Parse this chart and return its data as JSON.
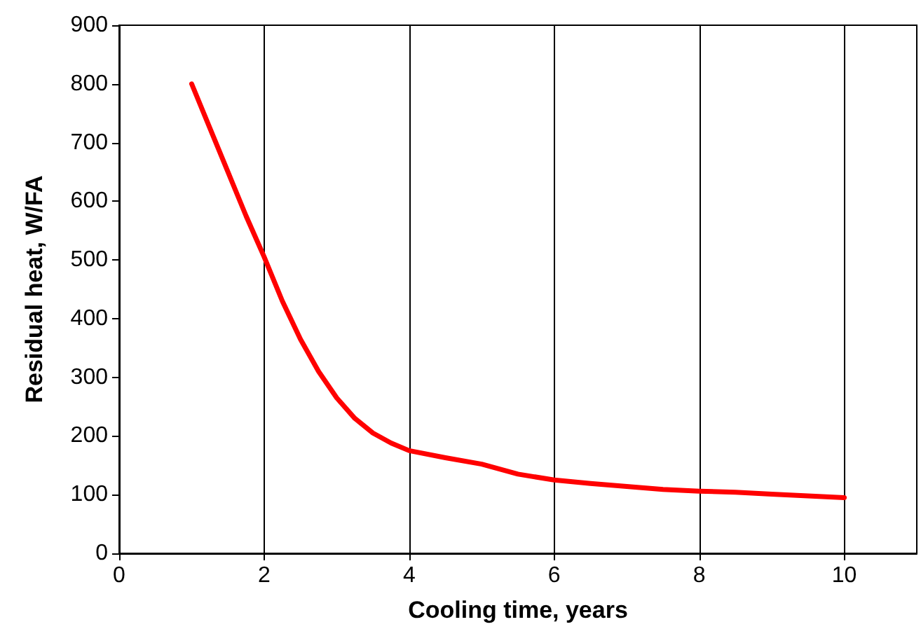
{
  "chart_data": {
    "type": "line",
    "xlabel": "Cooling time, years",
    "ylabel": "Residual heat, W/FA",
    "x": [
      1,
      1.25,
      1.5,
      1.75,
      2,
      2.25,
      2.5,
      2.75,
      3,
      3.25,
      3.5,
      3.75,
      4,
      4.5,
      5,
      5.5,
      6,
      6.5,
      7,
      7.5,
      8,
      8.5,
      9,
      9.5,
      10
    ],
    "series": [
      {
        "color": "#ff0000",
        "values": [
          800,
          725,
          650,
          575,
          505,
          430,
          365,
          310,
          265,
          230,
          205,
          188,
          175,
          163,
          152,
          135,
          125,
          119,
          114,
          109,
          106,
          104,
          101,
          98,
          95
        ]
      }
    ],
    "xlim": [
      0,
      11
    ],
    "xticks": [
      0,
      2,
      4,
      6,
      8,
      10
    ],
    "ylim": [
      0,
      900
    ],
    "yticks": [
      0,
      100,
      200,
      300,
      400,
      500,
      600,
      700,
      800,
      900
    ],
    "grid": "x",
    "marker": "none",
    "line_style": "solid"
  }
}
